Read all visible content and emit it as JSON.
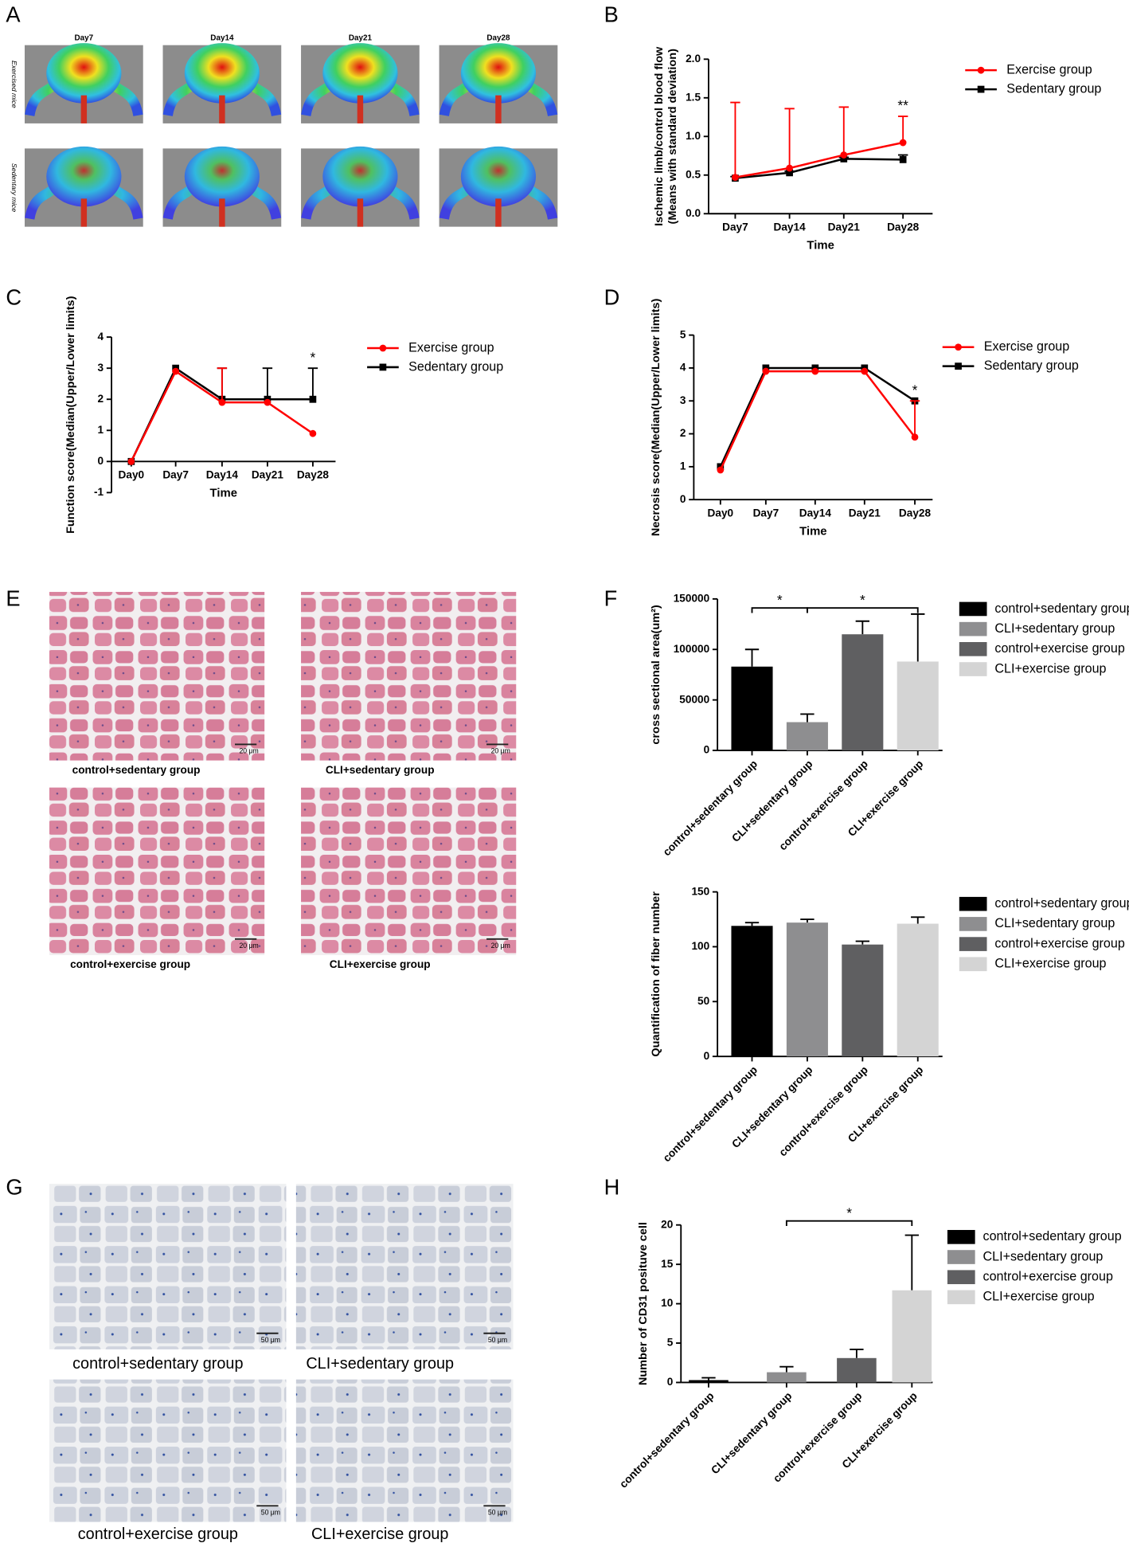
{
  "panel_labels": [
    "A",
    "B",
    "C",
    "D",
    "E",
    "F",
    "G",
    "H"
  ],
  "panel_a": {
    "columns": [
      "Day7",
      "Day14",
      "Day21",
      "Day28"
    ],
    "rows": [
      "Exercised mice",
      "Sedentary mice"
    ]
  },
  "panel_e": {
    "captions": [
      "control+sedentary group",
      "CLI+sedentary group",
      "control+exercise group",
      "CLI+exercise group"
    ],
    "scale_bars": [
      "20 μm",
      "20 μm",
      "20 μm",
      "20 μm"
    ]
  },
  "panel_g": {
    "captions": [
      "control+sedentary group",
      "CLI+sedentary group",
      "control+exercise group",
      "CLI+exercise group"
    ],
    "scale_bars": [
      "50 μm",
      "50 μm",
      "50 μm",
      "50 μm"
    ]
  },
  "chart_data": [
    {
      "type": "line",
      "ylabel": [
        "Ischemic limb/control blood flow",
        "(Means with standard deviation)"
      ],
      "xlabel": "Time",
      "categories": [
        "Day7",
        "Day14",
        "Day21",
        "Day28"
      ],
      "series": [
        {
          "name": "Exercise group",
          "color": "#ff0000",
          "marker": "circle",
          "values": [
            0.47,
            0.59,
            0.76,
            0.92
          ],
          "errors": [
            0.97,
            0.77,
            0.62,
            0.34
          ]
        },
        {
          "name": "Sedentary group",
          "color": "#000000",
          "marker": "square",
          "values": [
            0.46,
            0.53,
            0.71,
            0.7
          ],
          "errors": [
            0.02,
            0.02,
            0.02,
            0.06
          ]
        }
      ],
      "ylim": [
        0,
        2
      ],
      "yticks": [
        {
          "value": 0,
          "label": "0.0"
        },
        0.5,
        {
          "value": 1,
          "label": "1.0"
        },
        1.5,
        {
          "value": 2,
          "label": "2.0"
        }
      ],
      "annotation": "**"
    },
    {
      "type": "line",
      "ylabel": [
        "Function score(Median(Upper/Lower limits)"
      ],
      "xlabel": "Time",
      "categories": [
        "Day0",
        "Day7",
        "Day14",
        "Day21",
        "Day28"
      ],
      "series": [
        {
          "name": "Exercise group",
          "color": "#ff0000",
          "marker": "circle",
          "values": [
            0,
            2.9,
            1.9,
            1.9,
            0.9
          ],
          "upper": [
            null,
            null,
            3,
            null,
            null
          ]
        },
        {
          "name": "Sedentary group",
          "color": "#000000",
          "marker": "square",
          "values": [
            0,
            3,
            2,
            2,
            2
          ],
          "upper": [
            null,
            null,
            3,
            3,
            3
          ]
        }
      ],
      "ylim": [
        -1,
        4
      ],
      "yticks": [
        -1,
        0,
        1,
        2,
        3,
        4
      ],
      "annotation": "*"
    },
    {
      "type": "line",
      "ylabel": [
        "Necrosis score(Median(Upper/Lower limits)"
      ],
      "xlabel": "Time",
      "categories": [
        "Day0",
        "Day7",
        "Day14",
        "Day21",
        "Day28"
      ],
      "series": [
        {
          "name": "Exercise group",
          "color": "#ff0000",
          "marker": "circle",
          "values": [
            0.9,
            3.9,
            3.9,
            3.9,
            1.9
          ],
          "upper": [
            null,
            null,
            null,
            null,
            3
          ]
        },
        {
          "name": "Sedentary group",
          "color": "#000000",
          "marker": "square",
          "values": [
            1,
            4,
            4,
            4,
            3
          ],
          "upper": [
            null,
            null,
            null,
            null,
            null
          ]
        }
      ],
      "ylim": [
        0,
        5
      ],
      "yticks": [
        0,
        1,
        2,
        3,
        4,
        5
      ],
      "annotation": "*"
    },
    {
      "type": "bar",
      "ylabel": [
        "cross sectional area(um²)"
      ],
      "categories": [
        "control+sedentary group",
        "CLI+sedentary group",
        "control+exercise group",
        "CLI+exercise group"
      ],
      "values": [
        83000,
        28000,
        115000,
        88000
      ],
      "errors": [
        17000,
        8000,
        13000,
        47000
      ],
      "colors": [
        "#000000",
        "#8e8e90",
        "#5f5f61",
        "#d4d4d4"
      ],
      "ylim": [
        0,
        150000
      ],
      "yticks": [
        0,
        50000,
        100000,
        150000
      ],
      "brackets": [
        {
          "from": "control+sedentary group",
          "to": "CLI+sedentary group",
          "text": "*"
        },
        {
          "from": "CLI+sedentary group",
          "to": "CLI+exercise group",
          "text": "*"
        }
      ]
    },
    {
      "type": "bar",
      "ylabel": [
        "Quantification of fiber number"
      ],
      "categories": [
        "control+sedentary group",
        "CLI+sedentary group",
        "control+exercise group",
        "CLI+exercise group"
      ],
      "values": [
        119,
        122,
        102,
        121
      ],
      "errors": [
        3,
        3,
        3,
        6
      ],
      "colors": [
        "#000000",
        "#8e8e90",
        "#5f5f61",
        "#d4d4d4"
      ],
      "ylim": [
        0,
        150
      ],
      "yticks": [
        0,
        50,
        100,
        150
      ]
    },
    {
      "type": "bar",
      "ylabel": [
        "Number of CD31 posituve cell"
      ],
      "categories": [
        "control+sedentary group",
        "CLI+sedentary group",
        "control+exercise group",
        "CLI+exercise group"
      ],
      "values": [
        0.3,
        1.3,
        3.1,
        11.7
      ],
      "errors": [
        0.3,
        0.7,
        1.1,
        7.0
      ],
      "colors": [
        "#000000",
        "#8e8e90",
        "#5f5f61",
        "#d4d4d4"
      ],
      "ylim": [
        0,
        20
      ],
      "yticks": [
        0,
        5,
        10,
        15,
        20
      ],
      "brackets": [
        {
          "from": "CLI+sedentary group",
          "to": "CLI+exercise group",
          "text": "*"
        }
      ]
    }
  ]
}
